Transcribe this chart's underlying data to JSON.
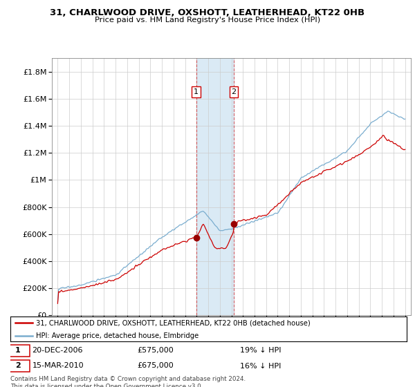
{
  "title": "31, CHARLWOOD DRIVE, OXSHOTT, LEATHERHEAD, KT22 0HB",
  "subtitle": "Price paid vs. HM Land Registry's House Price Index (HPI)",
  "footer": "Contains HM Land Registry data © Crown copyright and database right 2024.\nThis data is licensed under the Open Government Licence v3.0.",
  "legend_line1": "31, CHARLWOOD DRIVE, OXSHOTT, LEATHERHEAD, KT22 0HB (detached house)",
  "legend_line2": "HPI: Average price, detached house, Elmbridge",
  "transaction1": {
    "num": "1",
    "date": "20-DEC-2006",
    "price": "£575,000",
    "hpi": "19% ↓ HPI"
  },
  "transaction2": {
    "num": "2",
    "date": "15-MAR-2010",
    "price": "£675,000",
    "hpi": "16% ↓ HPI"
  },
  "red_color": "#cc0000",
  "blue_color": "#7aadcf",
  "highlight_color": "#daeaf5",
  "ylim": [
    0,
    1900000
  ],
  "yticks": [
    0,
    200000,
    400000,
    600000,
    800000,
    1000000,
    1200000,
    1400000,
    1600000,
    1800000
  ],
  "t1_year": 2006.97,
  "t2_year": 2010.21,
  "xmin": 1994.5,
  "xmax": 2025.5,
  "xtick_years": [
    1995,
    1996,
    1997,
    1998,
    1999,
    2000,
    2001,
    2002,
    2003,
    2004,
    2005,
    2006,
    2007,
    2008,
    2009,
    2010,
    2011,
    2012,
    2013,
    2014,
    2015,
    2016,
    2017,
    2018,
    2019,
    2020,
    2021,
    2022,
    2023,
    2024,
    2025
  ]
}
